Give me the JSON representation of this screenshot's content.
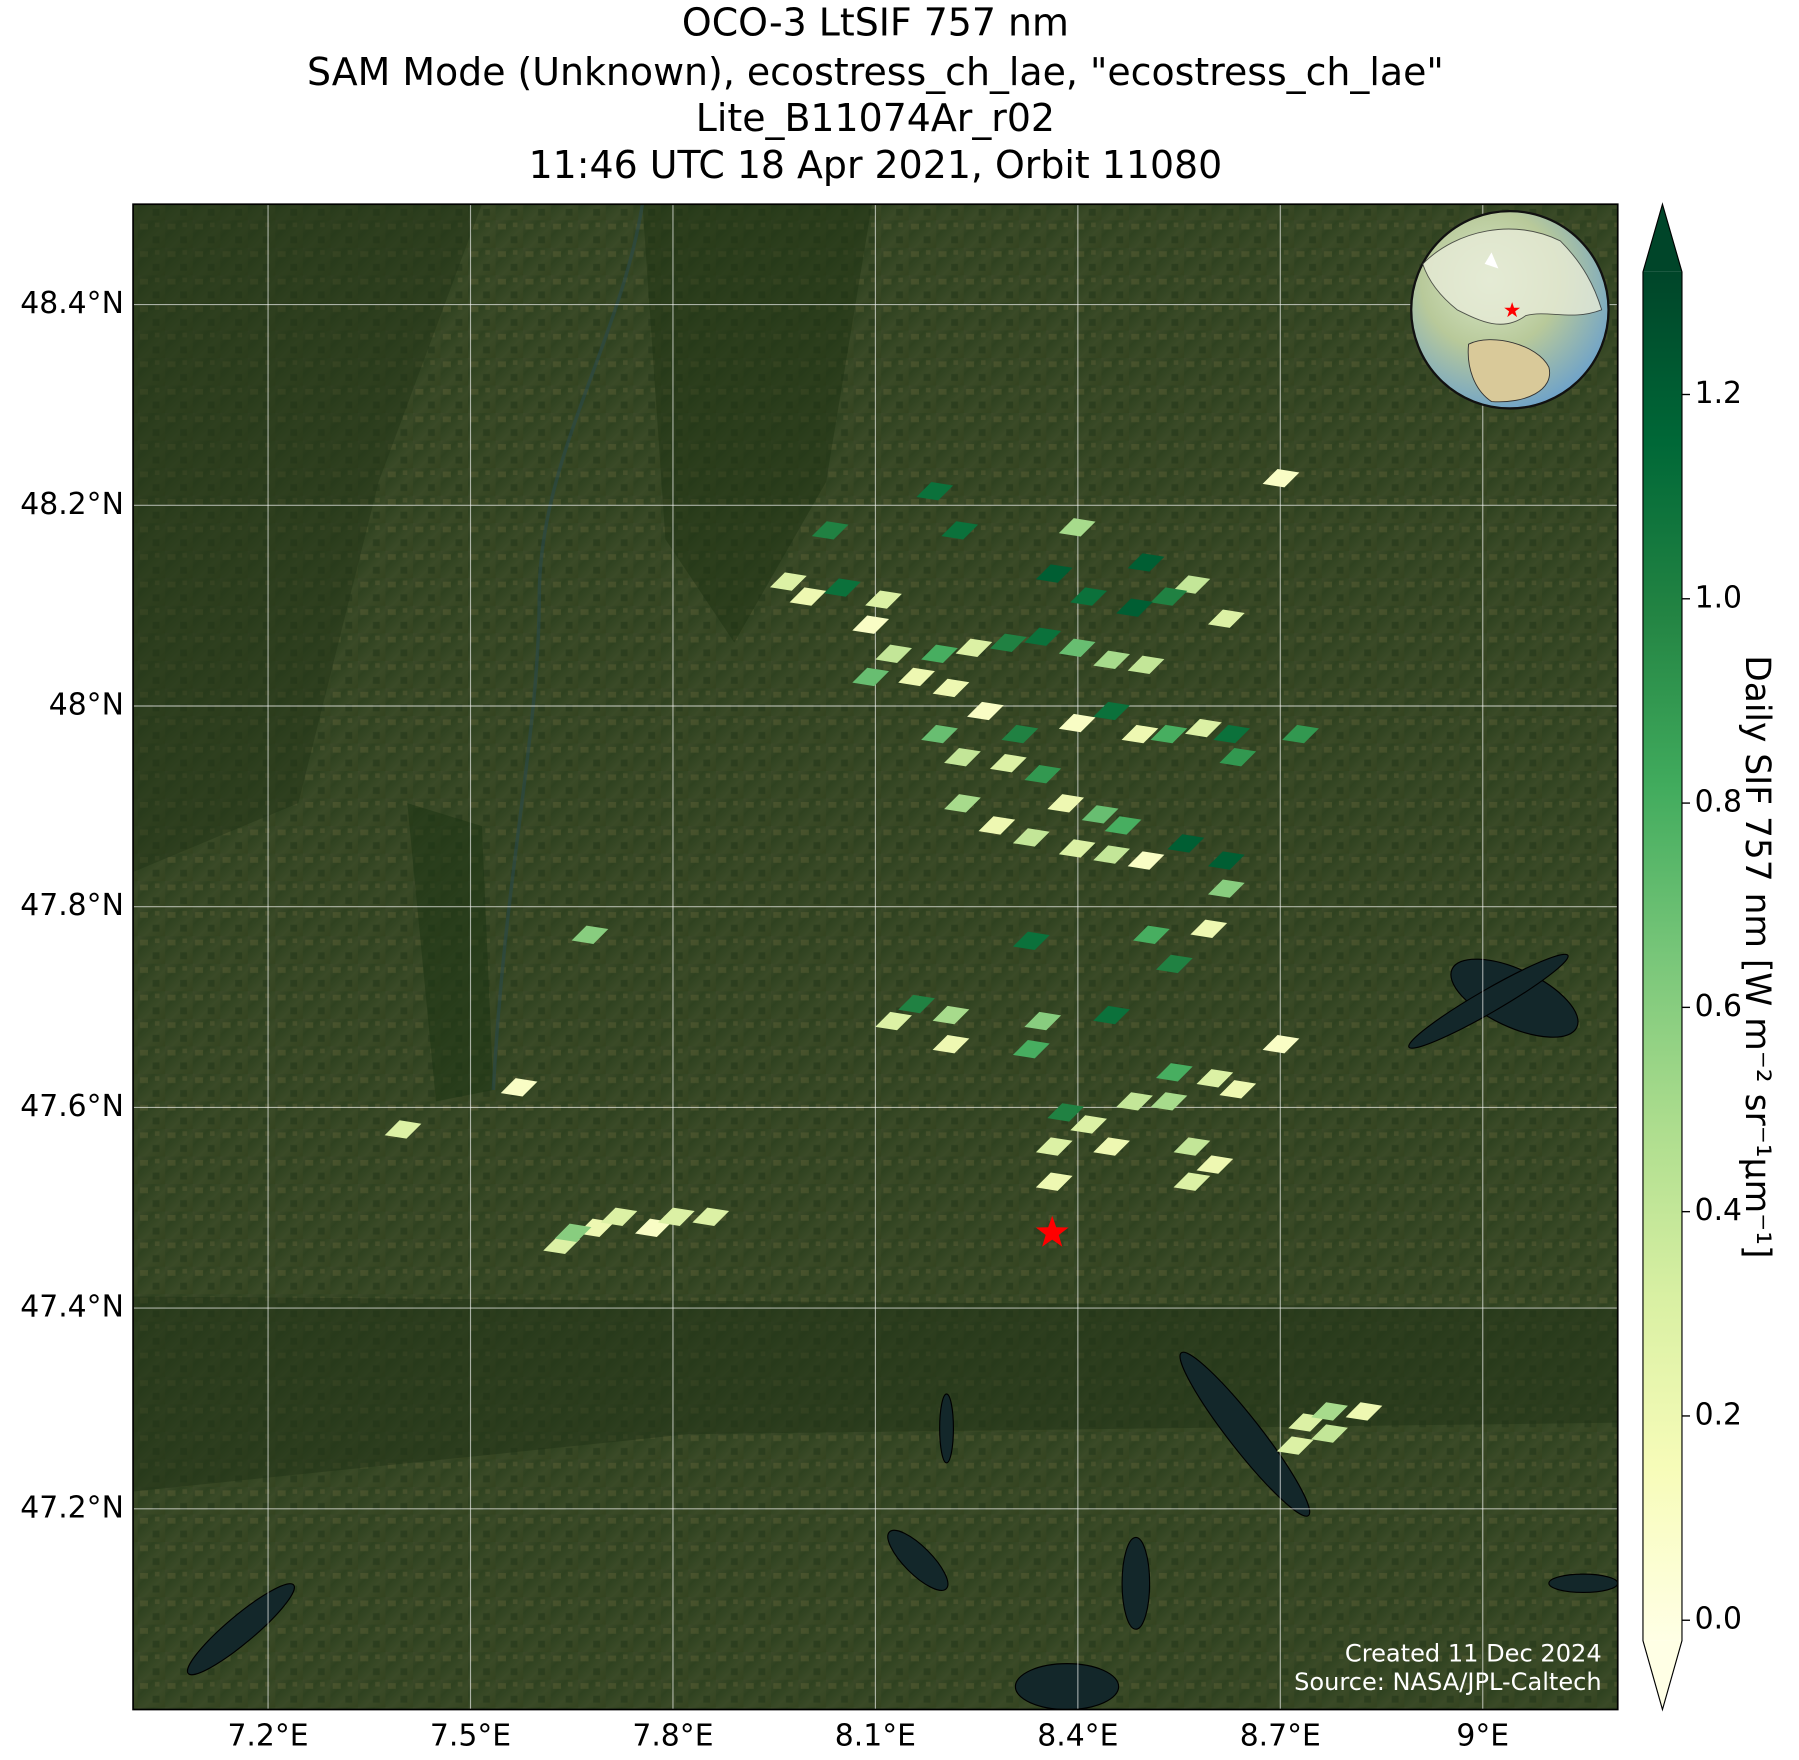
{
  "chart_data": {
    "type": "map",
    "title": "OCO-3 LtSIF 757 nm",
    "subtitle": [
      "SAM Mode (Unknown), ecostress_ch_lae, \"ecostress_ch_lae\"",
      "Lite_B11074Ar_r02",
      "11:46 UTC 18 Apr 2021, Orbit 11080"
    ],
    "xlim": [
      7.0,
      9.2
    ],
    "ylim": [
      47.0,
      48.5
    ],
    "xticks": [
      {
        "value": 7.2,
        "label": "7.2°E"
      },
      {
        "value": 7.5,
        "label": "7.5°E"
      },
      {
        "value": 7.8,
        "label": "7.8°E"
      },
      {
        "value": 8.1,
        "label": "8.1°E"
      },
      {
        "value": 8.4,
        "label": "8.4°E"
      },
      {
        "value": 8.7,
        "label": "8.7°E"
      },
      {
        "value": 9.0,
        "label": "9°E"
      }
    ],
    "yticks": [
      {
        "value": 47.2,
        "label": "47.2°N"
      },
      {
        "value": 47.4,
        "label": "47.4°N"
      },
      {
        "value": 47.6,
        "label": "47.6°N"
      },
      {
        "value": 47.8,
        "label": "47.8°N"
      },
      {
        "value": 48.0,
        "label": "48°N"
      },
      {
        "value": 48.2,
        "label": "48.2°N"
      },
      {
        "value": 48.4,
        "label": "48.4°N"
      }
    ],
    "grid": true,
    "colorbar_label": "Daily SIF 757 nm [W m⁻² sr⁻¹μm⁻¹]",
    "clim": [
      -0.02,
      1.32
    ],
    "cticks": [
      {
        "value": 0.0,
        "label": "0.0"
      },
      0.2,
      0.4,
      0.6,
      0.8,
      {
        "value": 1.0,
        "label": "1.0"
      },
      1.2
    ],
    "colormap": [
      "#ffffe5",
      "#f7fcb9",
      "#d9f0a3",
      "#addd8e",
      "#78c679",
      "#41ab5d",
      "#238443",
      "#006837",
      "#004529"
    ],
    "lon": [
      8.701,
      8.188,
      8.225,
      8.033,
      7.971,
      8.0,
      8.051,
      8.112,
      8.093,
      8.127,
      8.161,
      8.195,
      8.246,
      8.297,
      8.348,
      8.399,
      8.45,
      8.501,
      8.399,
      8.365,
      8.416,
      8.501,
      8.569,
      8.62,
      8.535,
      8.484,
      8.093,
      8.212,
      8.263,
      8.314,
      8.195,
      8.229,
      8.297,
      8.348,
      8.399,
      8.45,
      8.492,
      8.535,
      8.586,
      8.628,
      8.637,
      8.73,
      8.382,
      8.433,
      8.467,
      8.229,
      8.28,
      8.331,
      8.399,
      8.45,
      8.501,
      8.56,
      8.62,
      8.62,
      8.594,
      7.677,
      8.331,
      8.509,
      8.543,
      8.161,
      8.212,
      8.127,
      8.212,
      8.348,
      8.331,
      8.45,
      8.701,
      7.572,
      7.4,
      8.382,
      8.416,
      8.365,
      8.45,
      8.484,
      8.535,
      8.543,
      8.603,
      8.637,
      8.569,
      8.603,
      8.569,
      8.365,
      7.635,
      7.686,
      7.652,
      7.72,
      7.771,
      7.805,
      7.856,
      8.739,
      8.773,
      8.824,
      8.722,
      8.773
    ],
    "lat": [
      48.227,
      48.214,
      48.175,
      48.175,
      48.124,
      48.109,
      48.118,
      48.106,
      48.081,
      48.052,
      48.029,
      48.052,
      48.058,
      48.063,
      48.069,
      48.058,
      48.046,
      48.041,
      48.178,
      48.132,
      48.109,
      48.143,
      48.121,
      48.087,
      48.109,
      48.098,
      48.029,
      48.018,
      47.995,
      47.972,
      47.972,
      47.949,
      47.943,
      47.932,
      47.983,
      47.995,
      47.972,
      47.972,
      47.978,
      47.972,
      47.949,
      47.972,
      47.903,
      47.892,
      47.881,
      47.903,
      47.881,
      47.869,
      47.858,
      47.852,
      47.846,
      47.863,
      47.846,
      47.818,
      47.778,
      47.772,
      47.766,
      47.772,
      47.743,
      47.703,
      47.692,
      47.686,
      47.663,
      47.686,
      47.658,
      47.692,
      47.663,
      47.62,
      47.578,
      47.595,
      47.583,
      47.561,
      47.561,
      47.606,
      47.606,
      47.635,
      47.629,
      47.618,
      47.561,
      47.543,
      47.526,
      47.526,
      47.463,
      47.48,
      47.475,
      47.491,
      47.48,
      47.491,
      47.491,
      47.286,
      47.297,
      47.297,
      47.263,
      47.275
    ],
    "values": [
      0.1,
      1.1,
      1.1,
      1.0,
      0.3,
      0.2,
      1.1,
      0.3,
      0.1,
      0.4,
      0.2,
      0.8,
      0.3,
      1.0,
      1.1,
      0.7,
      0.5,
      0.4,
      0.5,
      1.2,
      1.1,
      1.2,
      0.4,
      0.3,
      1.0,
      1.2,
      0.7,
      0.2,
      0.1,
      1.0,
      0.7,
      0.4,
      0.3,
      0.9,
      0.1,
      1.1,
      0.2,
      0.8,
      0.3,
      1.1,
      0.9,
      0.9,
      0.2,
      0.7,
      0.8,
      0.5,
      0.2,
      0.4,
      0.3,
      0.4,
      0.1,
      1.2,
      1.2,
      0.6,
      0.2,
      0.6,
      1.1,
      0.8,
      1.0,
      1.0,
      0.5,
      0.3,
      0.2,
      0.6,
      0.8,
      1.1,
      0.1,
      0.1,
      0.3,
      1.0,
      0.3,
      0.3,
      0.2,
      0.4,
      0.5,
      0.8,
      0.3,
      0.2,
      0.4,
      0.2,
      0.3,
      0.2,
      0.3,
      0.2,
      0.6,
      0.3,
      0.1,
      0.3,
      0.3,
      0.3,
      0.5,
      0.2,
      0.3,
      0.4
    ],
    "target": {
      "lon": 8.362,
      "lat": 47.475
    },
    "notes": [
      "Created 11 Dec 2024",
      "Source: NASA/JPL-Caltech"
    ]
  }
}
